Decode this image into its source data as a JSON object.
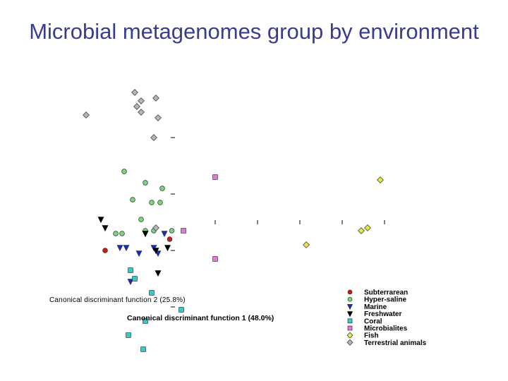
{
  "slide": {
    "title": "Microbial metagenomes group by environment"
  },
  "chart_data": {
    "type": "scatter",
    "title": "",
    "xlabel": "Canonical discriminant function 1 (48.0%)",
    "ylabel": "Canonical discriminant function 2 (25.8%)",
    "xlim": [
      -8,
      24
    ],
    "ylim": [
      -14,
      12
    ],
    "grid": false,
    "legend_position": "bottom-right",
    "series": [
      {
        "name": "Subterrarean",
        "marker": "circle",
        "color": "#d01818",
        "points": [
          [
            -6.4,
            -2.0
          ],
          [
            -0.3,
            -1.2
          ]
        ]
      },
      {
        "name": "Hyper-saline",
        "marker": "circle",
        "color": "#7ad67a",
        "points": [
          [
            -4.6,
            3.6
          ],
          [
            -2.6,
            2.8
          ],
          [
            -1.0,
            2.4
          ],
          [
            -3.8,
            1.6
          ],
          [
            -2.0,
            1.4
          ],
          [
            -1.2,
            1.4
          ],
          [
            -3.0,
            0.2
          ],
          [
            -2.6,
            -0.6
          ],
          [
            -1.8,
            -0.6
          ],
          [
            -0.1,
            -0.6
          ],
          [
            -5.4,
            -0.8
          ],
          [
            -4.8,
            -0.8
          ]
        ]
      },
      {
        "name": "Marine",
        "marker": "triangle-down",
        "color": "#1f2f9a",
        "points": [
          [
            -4.4,
            -1.8
          ],
          [
            -5.0,
            -1.8
          ],
          [
            -3.2,
            -2.2
          ],
          [
            -1.8,
            -1.8
          ],
          [
            -1.4,
            -2.2
          ],
          [
            -0.8,
            -0.8
          ],
          [
            -2.6,
            -0.8
          ],
          [
            -4.0,
            -4.2
          ]
        ]
      },
      {
        "name": "Freshwater",
        "marker": "triangle-down",
        "color": "#000000",
        "points": [
          [
            -6.8,
            0.2
          ],
          [
            -6.4,
            -0.4
          ],
          [
            -2.6,
            -0.8
          ],
          [
            -1.6,
            -2.0
          ],
          [
            -0.5,
            -1.8
          ],
          [
            -1.4,
            -3.6
          ]
        ]
      },
      {
        "name": "Coral",
        "marker": "square",
        "color": "#33cccc",
        "points": [
          [
            -4.0,
            -3.4
          ],
          [
            -3.6,
            -4.0
          ],
          [
            -2.0,
            -5.0
          ],
          [
            0.8,
            -6.2
          ],
          [
            -2.6,
            -7.0
          ],
          [
            -4.2,
            -8.0
          ],
          [
            -2.8,
            -9.0
          ]
        ]
      },
      {
        "name": "Microbialites",
        "marker": "square",
        "color": "#e07ad8",
        "points": [
          [
            4.0,
            3.2
          ],
          [
            1.0,
            -0.6
          ],
          [
            4.0,
            -2.6
          ]
        ]
      },
      {
        "name": "Fish",
        "marker": "diamond",
        "color": "#e6e645",
        "points": [
          [
            19.6,
            3.0
          ],
          [
            17.8,
            -0.6
          ],
          [
            18.4,
            -0.4
          ],
          [
            12.6,
            -1.6
          ]
        ]
      },
      {
        "name": "Terrestrial animals",
        "marker": "diamond",
        "color": "#b5b5b5",
        "points": [
          [
            -3.6,
            9.2
          ],
          [
            -3.0,
            8.6
          ],
          [
            -1.6,
            8.8
          ],
          [
            -3.4,
            8.2
          ],
          [
            -3.0,
            7.8
          ],
          [
            -8.2,
            7.6
          ],
          [
            -1.4,
            7.4
          ],
          [
            -1.8,
            6.0
          ],
          [
            -1.6,
            -0.4
          ]
        ]
      }
    ]
  }
}
